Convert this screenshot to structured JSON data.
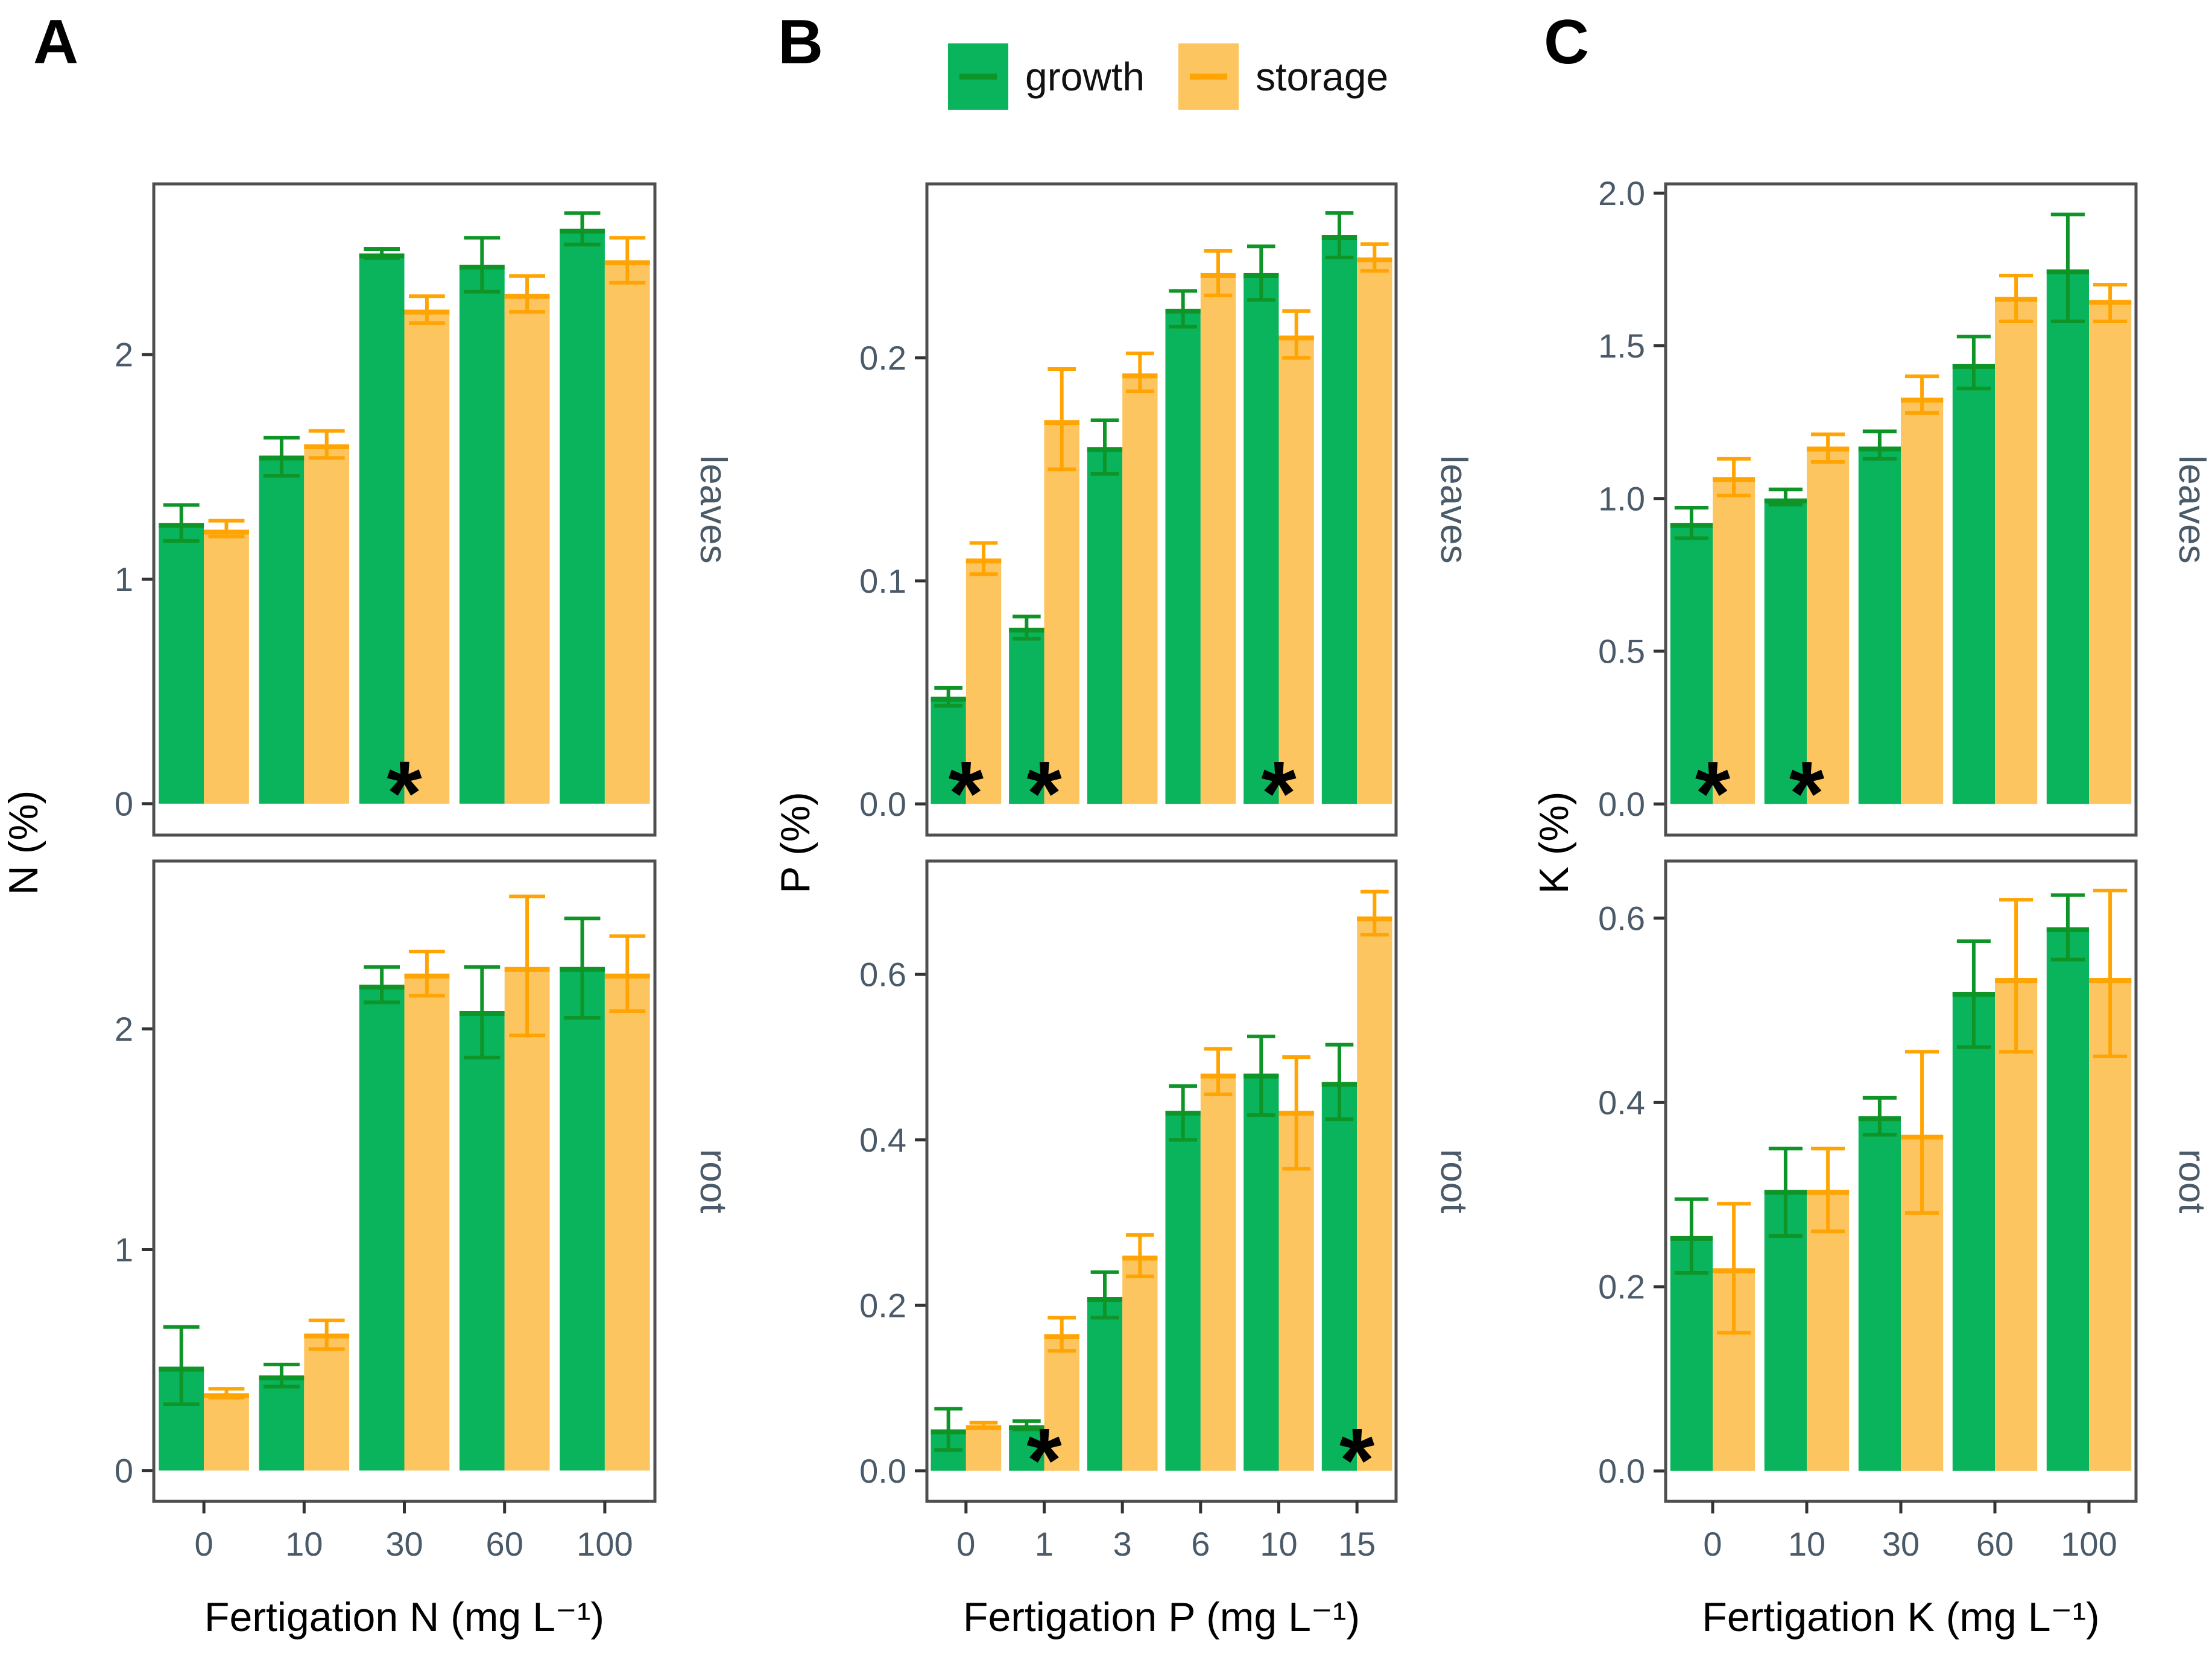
{
  "chart": {
    "type": "bar",
    "sig_marker": "*",
    "legend": {
      "items": [
        {
          "name": "growth",
          "label": "growth"
        },
        {
          "name": "storage",
          "label": "storage"
        }
      ]
    },
    "colors": {
      "growth_fill": "#09b45c",
      "growth_dark": "#0f9427",
      "storage_fill": "#fdc55f",
      "storage_dark": "#ffa402",
      "panel_border": "#4f4f4f",
      "tick": "#333333",
      "tick_label": "#4a5a68",
      "facet_label": "#4a5a68",
      "axis_title": "#000000",
      "asterisk": "#000000"
    },
    "panels": [
      {
        "label": "A",
        "ylabel": "N (%)",
        "xlabel": "Fertigation N (mg L⁻¹)",
        "categories": [
          "0",
          "10",
          "30",
          "60",
          "100"
        ],
        "facets": [
          {
            "name": "leaves",
            "ylim": [
              -0.14,
              2.76
            ],
            "yticks": [
              0,
              1,
              2
            ],
            "ytick_labels": [
              "0",
              "1",
              "2"
            ],
            "series": [
              {
                "name": "growth",
                "values": [
                  1.25,
                  1.55,
                  2.45,
                  2.4,
                  2.56
                ],
                "err_lo": [
                  1.17,
                  1.46,
                  2.43,
                  2.28,
                  2.49
                ],
                "err_hi": [
                  1.33,
                  1.63,
                  2.47,
                  2.52,
                  2.63
                ]
              },
              {
                "name": "storage",
                "values": [
                  1.22,
                  1.6,
                  2.2,
                  2.27,
                  2.42
                ],
                "err_lo": [
                  1.19,
                  1.54,
                  2.14,
                  2.19,
                  2.32
                ],
                "err_hi": [
                  1.26,
                  1.66,
                  2.26,
                  2.35,
                  2.52
                ]
              }
            ],
            "asterisks": [
              2
            ]
          },
          {
            "name": "root",
            "ylim": [
              -0.14,
              2.76
            ],
            "yticks": [
              0,
              1,
              2
            ],
            "ytick_labels": [
              "0",
              "1",
              "2"
            ],
            "series": [
              {
                "name": "growth",
                "values": [
                  0.47,
                  0.43,
                  2.2,
                  2.08,
                  2.28
                ],
                "err_lo": [
                  0.3,
                  0.38,
                  2.12,
                  1.87,
                  2.05
                ],
                "err_hi": [
                  0.65,
                  0.48,
                  2.28,
                  2.28,
                  2.5
                ]
              },
              {
                "name": "storage",
                "values": [
                  0.35,
                  0.62,
                  2.25,
                  2.28,
                  2.25
                ],
                "err_lo": [
                  0.33,
                  0.55,
                  2.15,
                  1.97,
                  2.08
                ],
                "err_hi": [
                  0.37,
                  0.68,
                  2.35,
                  2.6,
                  2.42
                ]
              }
            ],
            "asterisks": []
          }
        ]
      },
      {
        "label": "B",
        "ylabel": "P (%)",
        "xlabel": "Fertigation P (mg L⁻¹)",
        "categories": [
          "0",
          "1",
          "3",
          "6",
          "10",
          "15"
        ],
        "facets": [
          {
            "name": "leaves",
            "ylim": [
              -0.014,
              0.278
            ],
            "yticks": [
              0,
              0.1,
              0.2
            ],
            "ytick_labels": [
              "0.0",
              "0.1",
              "0.2"
            ],
            "series": [
              {
                "name": "growth",
                "values": [
                  0.048,
                  0.079,
                  0.16,
                  0.222,
                  0.238,
                  0.255
                ],
                "err_lo": [
                  0.044,
                  0.074,
                  0.148,
                  0.214,
                  0.226,
                  0.245
                ],
                "err_hi": [
                  0.052,
                  0.084,
                  0.172,
                  0.23,
                  0.25,
                  0.265
                ]
              },
              {
                "name": "storage",
                "values": [
                  0.11,
                  0.172,
                  0.193,
                  0.238,
                  0.21,
                  0.245
                ],
                "err_lo": [
                  0.103,
                  0.15,
                  0.185,
                  0.228,
                  0.2,
                  0.239
                ],
                "err_hi": [
                  0.117,
                  0.195,
                  0.202,
                  0.248,
                  0.221,
                  0.251
                ]
              }
            ],
            "asterisks": [
              0,
              1,
              4
            ]
          },
          {
            "name": "root",
            "ylim": [
              -0.037,
              0.737
            ],
            "yticks": [
              0,
              0.2,
              0.4,
              0.6
            ],
            "ytick_labels": [
              "0.0",
              "0.2",
              "0.4",
              "0.6"
            ],
            "series": [
              {
                "name": "growth",
                "values": [
                  0.05,
                  0.055,
                  0.21,
                  0.435,
                  0.48,
                  0.47
                ],
                "err_lo": [
                  0.025,
                  0.05,
                  0.185,
                  0.4,
                  0.43,
                  0.425
                ],
                "err_hi": [
                  0.075,
                  0.06,
                  0.24,
                  0.465,
                  0.525,
                  0.515
                ]
              },
              {
                "name": "storage",
                "values": [
                  0.055,
                  0.165,
                  0.26,
                  0.48,
                  0.435,
                  0.67
                ],
                "err_lo": [
                  0.052,
                  0.145,
                  0.235,
                  0.455,
                  0.365,
                  0.648
                ],
                "err_hi": [
                  0.058,
                  0.185,
                  0.285,
                  0.51,
                  0.5,
                  0.7
                ]
              }
            ],
            "asterisks": [
              1,
              5
            ]
          }
        ]
      },
      {
        "label": "C",
        "ylabel": "K (%)",
        "xlabel": "Fertigation K (mg L⁻¹)",
        "categories": [
          "0",
          "10",
          "30",
          "60",
          "100"
        ],
        "facets": [
          {
            "name": "leaves",
            "ylim": [
              -0.102,
              2.03
            ],
            "yticks": [
              0,
              0.5,
              1,
              1.5,
              2
            ],
            "ytick_labels": [
              "0.0",
              "0.5",
              "1.0",
              "1.5",
              "2.0"
            ],
            "series": [
              {
                "name": "growth",
                "values": [
                  0.92,
                  1.0,
                  1.17,
                  1.44,
                  1.75
                ],
                "err_lo": [
                  0.87,
                  0.98,
                  1.13,
                  1.36,
                  1.58
                ],
                "err_hi": [
                  0.97,
                  1.03,
                  1.22,
                  1.53,
                  1.93
                ]
              },
              {
                "name": "storage",
                "values": [
                  1.07,
                  1.17,
                  1.33,
                  1.66,
                  1.65
                ],
                "err_lo": [
                  1.01,
                  1.12,
                  1.28,
                  1.58,
                  1.58
                ],
                "err_hi": [
                  1.13,
                  1.21,
                  1.4,
                  1.73,
                  1.7
                ]
              }
            ],
            "asterisks": [
              0,
              1
            ]
          },
          {
            "name": "root",
            "ylim": [
              -0.033,
              0.662
            ],
            "yticks": [
              0,
              0.2,
              0.4,
              0.6
            ],
            "ytick_labels": [
              "0.0",
              "0.2",
              "0.4",
              "0.6"
            ],
            "series": [
              {
                "name": "growth",
                "values": [
                  0.255,
                  0.305,
                  0.385,
                  0.52,
                  0.59
                ],
                "err_lo": [
                  0.215,
                  0.255,
                  0.365,
                  0.46,
                  0.555
                ],
                "err_hi": [
                  0.295,
                  0.35,
                  0.405,
                  0.575,
                  0.625
                ]
              },
              {
                "name": "storage",
                "values": [
                  0.22,
                  0.305,
                  0.365,
                  0.535,
                  0.535
                ],
                "err_lo": [
                  0.15,
                  0.26,
                  0.28,
                  0.455,
                  0.45
                ],
                "err_hi": [
                  0.29,
                  0.35,
                  0.455,
                  0.62,
                  0.63
                ]
              }
            ],
            "asterisks": []
          }
        ]
      }
    ]
  }
}
